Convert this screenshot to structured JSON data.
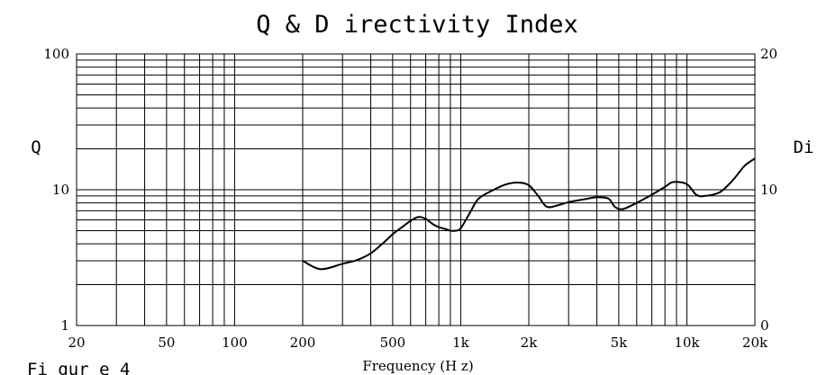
{
  "chart_data": {
    "type": "line",
    "title": "Q & D irectivity Index",
    "xlabel": "Frequency (H z)",
    "ylabel_left": "Q",
    "ylabel_right": "Di",
    "x_scale": "log",
    "y_scale": "log",
    "xlim": [
      20,
      20000
    ],
    "ylim_left": [
      1,
      100
    ],
    "ylim_right": [
      0,
      20
    ],
    "x_ticks": [
      {
        "value": 20,
        "label": "20"
      },
      {
        "value": 50,
        "label": "50"
      },
      {
        "value": 100,
        "label": "100"
      },
      {
        "value": 200,
        "label": "200"
      },
      {
        "value": 500,
        "label": "500"
      },
      {
        "value": 1000,
        "label": "1k"
      },
      {
        "value": 2000,
        "label": "2k"
      },
      {
        "value": 5000,
        "label": "5k"
      },
      {
        "value": 10000,
        "label": "10k"
      },
      {
        "value": 20000,
        "label": "20k"
      }
    ],
    "y_ticks_left": [
      {
        "value": 1,
        "label": "1"
      },
      {
        "value": 10,
        "label": "10"
      },
      {
        "value": 100,
        "label": "100"
      }
    ],
    "y_ticks_right": [
      {
        "value": 0,
        "label": "0"
      },
      {
        "value": 10,
        "label": "10"
      },
      {
        "value": 20,
        "label": "20"
      }
    ],
    "grid": true,
    "series": [
      {
        "x": [
          200,
          240,
          300,
          350,
          400,
          450,
          500,
          550,
          600,
          650,
          700,
          750,
          800,
          850,
          900,
          950,
          1000,
          1100,
          1200,
          1400,
          1600,
          1800,
          2000,
          2200,
          2400,
          2700,
          3000,
          3500,
          4000,
          4500,
          4800,
          5200,
          6000,
          7000,
          8000,
          8700,
          10000,
          11000,
          12000,
          14000,
          16000,
          18000,
          20000
        ],
        "y": [
          3.0,
          2.6,
          2.85,
          3.05,
          3.4,
          4.0,
          4.7,
          5.3,
          5.9,
          6.3,
          6.1,
          5.6,
          5.3,
          5.15,
          5.0,
          5.0,
          5.2,
          6.8,
          8.6,
          10.0,
          11.0,
          11.3,
          10.8,
          9.0,
          7.5,
          7.7,
          8.1,
          8.5,
          8.8,
          8.6,
          7.5,
          7.2,
          8.0,
          9.2,
          10.5,
          11.4,
          11.0,
          9.2,
          9.0,
          9.6,
          11.8,
          15.0,
          17.0
        ]
      }
    ]
  },
  "caption": {
    "text": "Fi gur e 4"
  },
  "colors": {
    "axis": "#000000",
    "grid": "#000000",
    "line": "#000000",
    "background": "#ffffff"
  }
}
